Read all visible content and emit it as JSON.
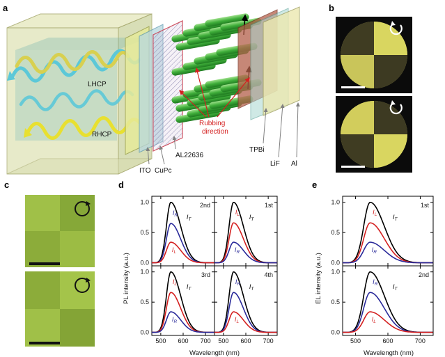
{
  "panels": {
    "a": {
      "letter": "a",
      "labels": {
        "lhcp": "LHCP",
        "rhcp": "RHCP",
        "ito": "ITO",
        "cupc": "CuPc",
        "al22636": "AL22636",
        "rubbing_1": "Rubbing",
        "rubbing_2": "direction",
        "tpbi": "TPBi",
        "lif": "LiF",
        "al": "Al"
      }
    },
    "b": {
      "letter": "b"
    },
    "c": {
      "letter": "c"
    },
    "d": {
      "letter": "d"
    },
    "e": {
      "letter": "e"
    }
  },
  "colors": {
    "total": "#000000",
    "left": "#d42020",
    "right": "#2a2a9a",
    "lhcp_wave": "#5cc8d8",
    "rhcp_wave": "#e8e030",
    "green_rod": "#3fae3a"
  },
  "curve_symbols": {
    "T": "I",
    "T_sub": "T",
    "L": "I",
    "L_sub": "L",
    "R": "I",
    "R_sub": "R"
  },
  "chart_data": [
    {
      "type": "line",
      "panel": "d",
      "subplot": "2nd",
      "tag": "2nd",
      "xlim": [
        460,
        740
      ],
      "ylim": [
        -0.05,
        1.1
      ],
      "xticks": [
        500,
        600,
        700
      ],
      "yticks": [
        0.0,
        0.5,
        1.0
      ],
      "ytick_labels": [
        "0.0",
        "0.5",
        "1.0"
      ],
      "peak_x": 545,
      "series": [
        {
          "name": "I_T",
          "peak": 1.0
        },
        {
          "name": "I_R",
          "peak": 0.65
        },
        {
          "name": "I_L",
          "peak": 0.34
        }
      ]
    },
    {
      "type": "line",
      "panel": "d",
      "subplot": "1st",
      "tag": "1st",
      "xlim": [
        460,
        740
      ],
      "ylim": [
        -0.05,
        1.1
      ],
      "xticks": [
        500,
        600,
        700
      ],
      "yticks": [
        0.0,
        0.5,
        1.0
      ],
      "peak_x": 545,
      "series": [
        {
          "name": "I_T",
          "peak": 1.0
        },
        {
          "name": "I_L",
          "peak": 0.66
        },
        {
          "name": "I_R",
          "peak": 0.34
        }
      ]
    },
    {
      "type": "line",
      "panel": "d",
      "subplot": "3rd",
      "tag": "3rd",
      "xlim": [
        460,
        740
      ],
      "ylim": [
        -0.05,
        1.1
      ],
      "xticks": [
        500,
        600,
        700
      ],
      "yticks": [
        0.0,
        0.5,
        1.0
      ],
      "ytick_labels": [
        "0.0",
        "0.5",
        "1.0"
      ],
      "xtick_labels": [
        "500",
        "600",
        "700"
      ],
      "peak_x": 545,
      "series": [
        {
          "name": "I_T",
          "peak": 1.0
        },
        {
          "name": "I_L",
          "peak": 0.66
        },
        {
          "name": "I_R",
          "peak": 0.34
        }
      ]
    },
    {
      "type": "line",
      "panel": "d",
      "subplot": "4th",
      "tag": "4th",
      "xlim": [
        460,
        740
      ],
      "ylim": [
        -0.05,
        1.1
      ],
      "xticks": [
        500,
        600,
        700
      ],
      "yticks": [
        0.0,
        0.5,
        1.0
      ],
      "xtick_labels": [
        "500",
        "600",
        "700"
      ],
      "peak_x": 545,
      "series": [
        {
          "name": "I_T",
          "peak": 1.0
        },
        {
          "name": "I_R",
          "peak": 0.66
        },
        {
          "name": "I_L",
          "peak": 0.34
        }
      ]
    },
    {
      "type": "line",
      "panel": "e",
      "subplot": "1st",
      "tag": "1st",
      "xlim": [
        460,
        740
      ],
      "ylim": [
        -0.05,
        1.1
      ],
      "xticks": [
        500,
        600,
        700
      ],
      "yticks": [
        0.0,
        0.5,
        1.0
      ],
      "ytick_labels": [
        "0.0",
        "0.5",
        "1.0"
      ],
      "peak_x": 545,
      "series": [
        {
          "name": "I_T",
          "peak": 1.0
        },
        {
          "name": "I_L",
          "peak": 0.66
        },
        {
          "name": "I_R",
          "peak": 0.34
        }
      ]
    },
    {
      "type": "line",
      "panel": "e",
      "subplot": "2nd",
      "tag": "2nd",
      "xlim": [
        460,
        740
      ],
      "ylim": [
        -0.05,
        1.1
      ],
      "xticks": [
        500,
        600,
        700
      ],
      "yticks": [
        0.0,
        0.5,
        1.0
      ],
      "ytick_labels": [
        "0.0",
        "0.5",
        "1.0"
      ],
      "xtick_labels": [
        "500",
        "600",
        "700"
      ],
      "peak_x": 545,
      "series": [
        {
          "name": "I_T",
          "peak": 1.0
        },
        {
          "name": "I_R",
          "peak": 0.66
        },
        {
          "name": "I_L",
          "peak": 0.34
        }
      ]
    }
  ],
  "axes": {
    "d_ylabel": "PL intensity (a.u.)",
    "e_ylabel": "EL intensity (a.u.)",
    "xlabel": "Wavelength (nm)"
  }
}
